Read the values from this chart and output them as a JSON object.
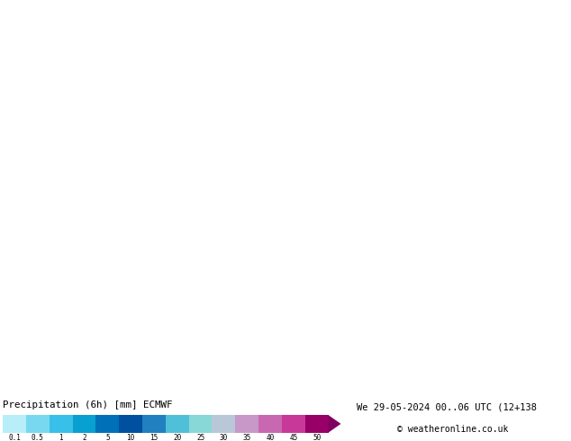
{
  "title_left": "Precipitation (6h) [mm] ECMWF",
  "title_right": "We 29-05-2024 00..06 UTC (12+138",
  "title_right2": "© weatheronline.co.uk",
  "cb_labels": [
    "0.1",
    "0.5",
    "1",
    "2",
    "5",
    "10",
    "15",
    "20",
    "25",
    "30",
    "35",
    "40",
    "45",
    "50"
  ],
  "cb_colors": [
    "#b8eef8",
    "#78d8f0",
    "#38c0e8",
    "#08a0d0",
    "#0070b8",
    "#0050a0",
    "#2080c0",
    "#50c0d8",
    "#88d8d8",
    "#b8c8d8",
    "#c898c8",
    "#c868b0",
    "#c83898",
    "#980068"
  ],
  "land_color": "#c8f0a0",
  "sea_color": "#d8eef8",
  "border_color": "#a0b0a0",
  "fig_width": 6.34,
  "fig_height": 4.9,
  "dpi": 100,
  "extent": [
    -5,
    35,
    45,
    72
  ],
  "map_bg": "#ddeeff",
  "prec_colors": {
    "very_light": "#c0ecf8",
    "light": "#90d8f0",
    "medium_light": "#50b8e0",
    "medium": "#2090c8",
    "medium_dark": "#1060a8",
    "dark": "#0040a0"
  }
}
